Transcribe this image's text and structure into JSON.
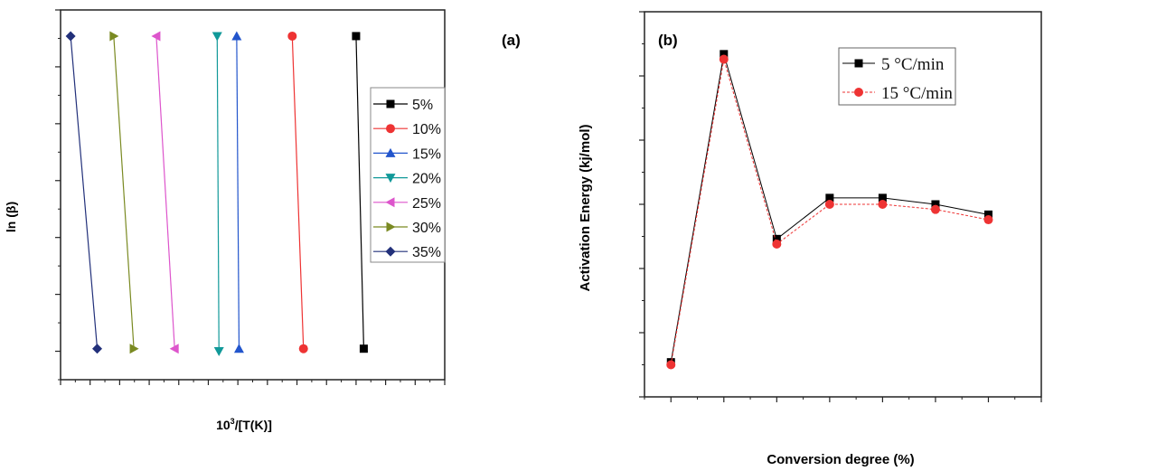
{
  "chart_data": [
    {
      "type": "line",
      "panel_label": "(a)",
      "xlabel_base": "10",
      "xlabel_sup": "3",
      "xlabel_rest": "/[T(K)]",
      "ylabel": "ln (β)",
      "xlim": [
        1.35,
        2.0
      ],
      "ylim": [
        1.5,
        2.8
      ],
      "xticks": [
        "1.35",
        "1.40",
        "1.45",
        "1.50",
        "1.55",
        "1.60",
        "1.65",
        "1.70",
        "1.75",
        "1.80",
        "1.85",
        "1.90",
        "1.95",
        "2.00"
      ],
      "yticks": [
        "1.6",
        "1.8",
        "2.0",
        "2.2",
        "2.4",
        "2.6",
        "2.8"
      ],
      "legend_position": "right",
      "series": [
        {
          "name": "5%",
          "color": "#000000",
          "marker": "square",
          "points": [
            [
              1.85,
              2.708
            ],
            [
              1.863,
              1.609
            ]
          ]
        },
        {
          "name": "10%",
          "color": "#ee3333",
          "marker": "circle",
          "points": [
            [
              1.742,
              2.708
            ],
            [
              1.761,
              1.609
            ]
          ]
        },
        {
          "name": "15%",
          "color": "#2255cc",
          "marker": "triangle-up",
          "points": [
            [
              1.648,
              2.708
            ],
            [
              1.652,
              1.609
            ]
          ]
        },
        {
          "name": "20%",
          "color": "#119999",
          "marker": "triangle-down",
          "points": [
            [
              1.615,
              2.708
            ],
            [
              1.618,
              1.6
            ]
          ]
        },
        {
          "name": "25%",
          "color": "#dd55cc",
          "marker": "triangle-left",
          "points": [
            [
              1.512,
              2.708
            ],
            [
              1.543,
              1.609
            ]
          ]
        },
        {
          "name": "30%",
          "color": "#7a8a22",
          "marker": "triangle-right",
          "points": [
            [
              1.44,
              2.708
            ],
            [
              1.474,
              1.609
            ]
          ]
        },
        {
          "name": "35%",
          "color": "#22307a",
          "marker": "diamond",
          "points": [
            [
              1.367,
              2.708
            ],
            [
              1.412,
              1.609
            ]
          ]
        }
      ]
    },
    {
      "type": "line",
      "panel_label": "(b)",
      "xlabel": "Conversion degree (%)",
      "ylabel": "Activation Energy (kj/mol)",
      "xlim": [
        2.5,
        40
      ],
      "ylim": [
        0,
        300
      ],
      "xticks": [
        "5",
        "10",
        "15",
        "20",
        "25",
        "30",
        "35",
        "40"
      ],
      "yticks": [
        "0",
        "50",
        "100",
        "150",
        "200",
        "250",
        "300"
      ],
      "x": [
        5,
        10,
        15,
        20,
        25,
        30,
        35
      ],
      "legend_position": "top-right",
      "series": [
        {
          "name": "5 °C/min",
          "color": "#000000",
          "marker": "square",
          "values": [
            27,
            267,
            123,
            155,
            155,
            150,
            142
          ]
        },
        {
          "name": "15 °C/min",
          "color": "#ee3333",
          "marker": "circle",
          "values": [
            25,
            263,
            119,
            150,
            150,
            146,
            138
          ]
        }
      ]
    }
  ]
}
